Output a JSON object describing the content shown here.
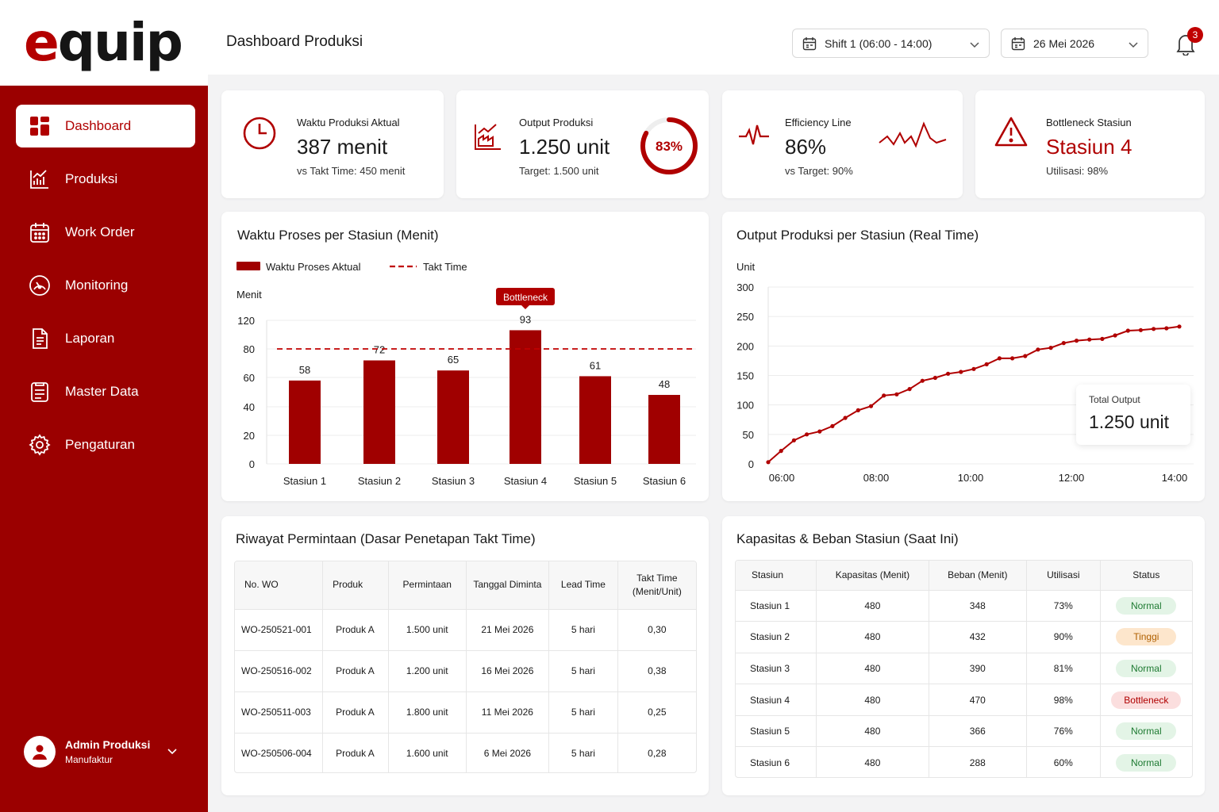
{
  "brand": {
    "logo_e": "e",
    "logo_rest": "quip",
    "accent": "#9b0000",
    "red": "#b00000"
  },
  "sidebar": {
    "items": [
      {
        "label": "Dashboard",
        "icon": "dashboard-grid-icon"
      },
      {
        "label": "Produksi",
        "icon": "production-chart-icon"
      },
      {
        "label": "Work Order",
        "icon": "calendar-grid-icon"
      },
      {
        "label": "Monitoring",
        "icon": "gauge-icon"
      },
      {
        "label": "Laporan",
        "icon": "document-icon"
      },
      {
        "label": "Master Data",
        "icon": "list-icon"
      },
      {
        "label": "Pengaturan",
        "icon": "gear-icon"
      }
    ],
    "user": {
      "name": "Admin Produksi",
      "role": "Manufaktur"
    }
  },
  "header": {
    "title": "Dashboard Produksi",
    "shift": "Shift 1 (06:00 - 14:00)",
    "date": "26 Mei 2026",
    "notifications": "3"
  },
  "kpis": {
    "time": {
      "label": "Waktu Produksi Aktual",
      "value": "387 menit",
      "sub": "vs Takt Time: 450 menit"
    },
    "output": {
      "label": "Output Produksi",
      "value": "1.250 unit",
      "sub": "Target: 1.500 unit",
      "percent_text": "83%",
      "percent": 0.83
    },
    "efficiency": {
      "label": "Efficiency Line",
      "value": "86%",
      "sub": "vs Target: 90%"
    },
    "bottleneck": {
      "label": "Bottleneck Stasiun",
      "value": "Stasiun 4",
      "sub": "Utilisasi: 98%"
    }
  },
  "bar_panel": {
    "title": "Waktu Proses per Stasiun (Menit)",
    "legend_actual": "Waktu Proses Aktual",
    "legend_takt": "Takt Time",
    "y_unit": "Menit",
    "bottleneck_label": "Bottleneck"
  },
  "line_panel": {
    "title": "Output Produksi per Stasiun (Real Time)",
    "y_unit": "Unit",
    "total_label": "Total Output",
    "total_value": "1.250 unit"
  },
  "chart_data": [
    {
      "type": "bar",
      "categories": [
        "Stasiun 1",
        "Stasiun 2",
        "Stasiun 3",
        "Stasiun 4",
        "Stasiun 5",
        "Stasiun 6"
      ],
      "values": [
        58,
        72,
        65,
        93,
        61,
        48
      ],
      "y_ticks": [
        "0",
        "20",
        "40",
        "60",
        "80",
        "120"
      ],
      "takt_time_level": 80,
      "highlight_index": 3
    },
    {
      "type": "line",
      "x_ticks": [
        "06:00",
        "08:00",
        "10:00",
        "12:00",
        "14:00"
      ],
      "y_ticks": [
        0,
        50,
        100,
        150,
        200,
        250,
        300
      ],
      "ylim": [
        0,
        300
      ],
      "x_hours": [
        6.0,
        6.25,
        6.5,
        6.75,
        7.0,
        7.25,
        7.5,
        7.75,
        8.0,
        8.25,
        8.5,
        8.75,
        9.0,
        9.25,
        9.5,
        9.75,
        10.0,
        10.25,
        10.5,
        10.75,
        11.0,
        11.25,
        11.5,
        11.75,
        12.0,
        12.25,
        12.5,
        12.75,
        13.0,
        13.25,
        13.5,
        13.75,
        14.0
      ],
      "values": [
        3,
        22,
        40,
        50,
        55,
        64,
        78,
        91,
        98,
        116,
        118,
        127,
        141,
        146,
        153,
        156,
        161,
        169,
        179,
        179,
        183,
        194,
        197,
        205,
        209,
        211,
        212,
        218,
        226,
        227,
        229,
        230,
        233
      ]
    }
  ],
  "demand_table": {
    "title": "Riwayat Permintaan (Dasar Penetapan Takt Time)",
    "headers": [
      "No. WO",
      "Produk",
      "Permintaan",
      "Tanggal Diminta",
      "Lead Time",
      "Takt Time\n(Menit/Unit)"
    ],
    "rows": [
      [
        "WO-250521-001",
        "Produk A",
        "1.500 unit",
        "21 Mei 2026",
        "5 hari",
        "0,30"
      ],
      [
        "WO-250516-002",
        "Produk A",
        "1.200 unit",
        "16 Mei 2026",
        "5 hari",
        "0,38"
      ],
      [
        "WO-250511-003",
        "Produk A",
        "1.800 unit",
        "11 Mei 2026",
        "5 hari",
        "0,25"
      ],
      [
        "WO-250506-004",
        "Produk A",
        "1.600 unit",
        "6 Mei 2026",
        "5 hari",
        "0,28"
      ]
    ]
  },
  "capacity_table": {
    "title": "Kapasitas & Beban Stasiun (Saat Ini)",
    "headers": [
      "Stasiun",
      "Kapasitas (Menit)",
      "Beban (Menit)",
      "Utilisasi",
      "Status"
    ],
    "rows": [
      [
        "Stasiun 1",
        "480",
        "348",
        "73%",
        "Normal"
      ],
      [
        "Stasiun 2",
        "480",
        "432",
        "90%",
        "Tinggi"
      ],
      [
        "Stasiun 3",
        "480",
        "390",
        "81%",
        "Normal"
      ],
      [
        "Stasiun 4",
        "480",
        "470",
        "98%",
        "Bottleneck"
      ],
      [
        "Stasiun 5",
        "480",
        "366",
        "76%",
        "Normal"
      ],
      [
        "Stasiun 6",
        "480",
        "288",
        "60%",
        "Normal"
      ]
    ],
    "status_colors": {
      "Normal": {
        "bg": "#e3f4e6",
        "fg": "#1e7a32"
      },
      "Tinggi": {
        "bg": "#fde6cc",
        "fg": "#b06000"
      },
      "Bottleneck": {
        "bg": "#fbdede",
        "fg": "#b00000"
      }
    }
  }
}
